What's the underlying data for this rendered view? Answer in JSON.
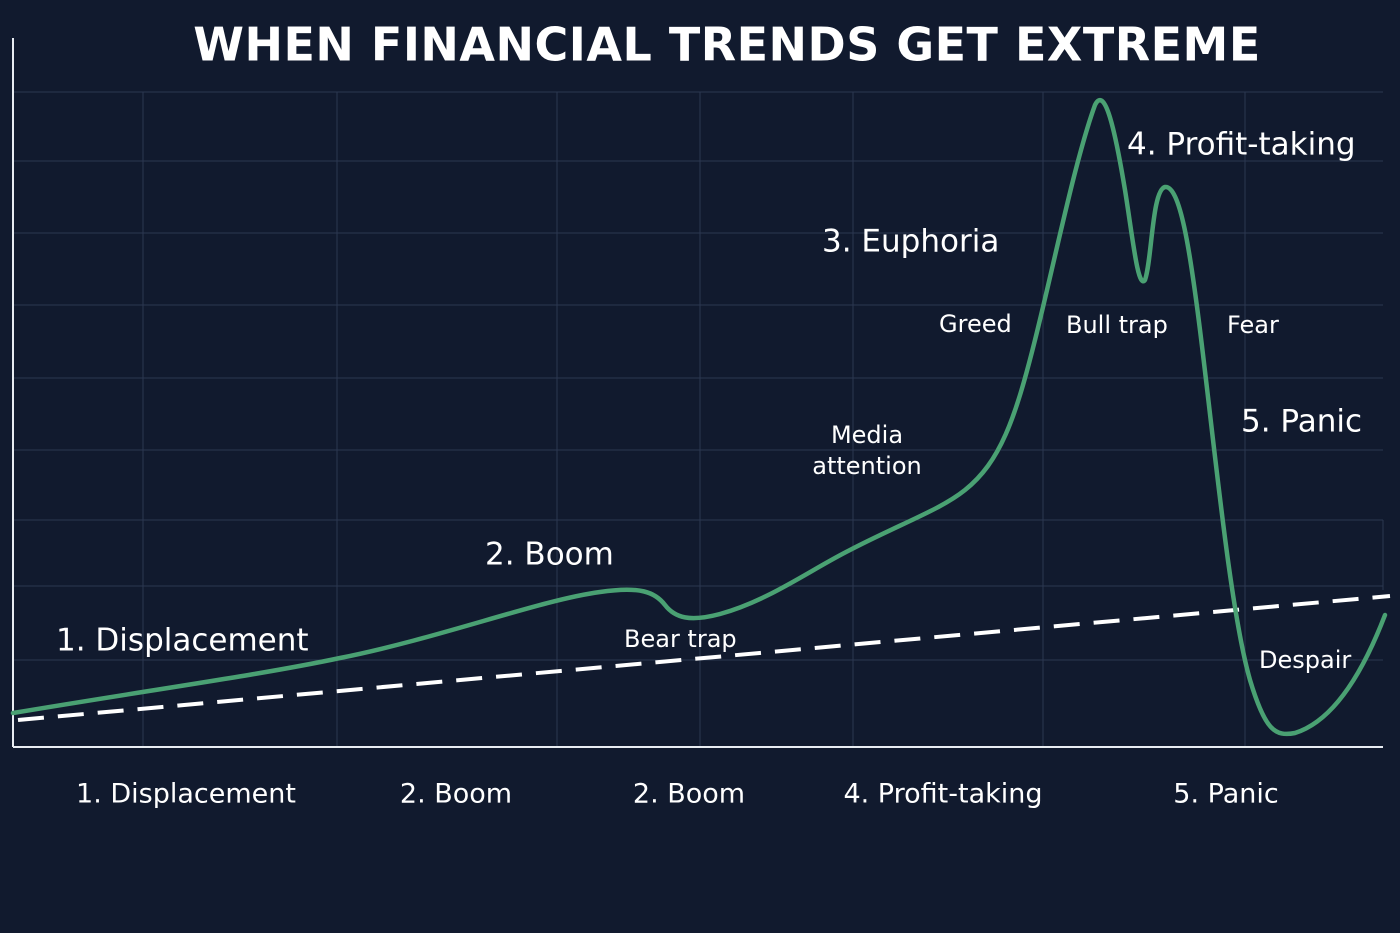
{
  "title": "WHEN FINANCIAL TRENDS GET EXTREME",
  "annotations": [
    "1. Displacement",
    "2. Boom",
    "Bear trap",
    "Media",
    "attention",
    "3. Euphoria",
    "Greed",
    "Bull trap",
    "4. Profit-taking",
    "Fear",
    "5. Panic",
    "Despair"
  ],
  "x_labels": [
    "1. Displacement",
    "2. Boom",
    "2. Boom",
    "4. Profit-taking",
    "5. Panic"
  ]
}
